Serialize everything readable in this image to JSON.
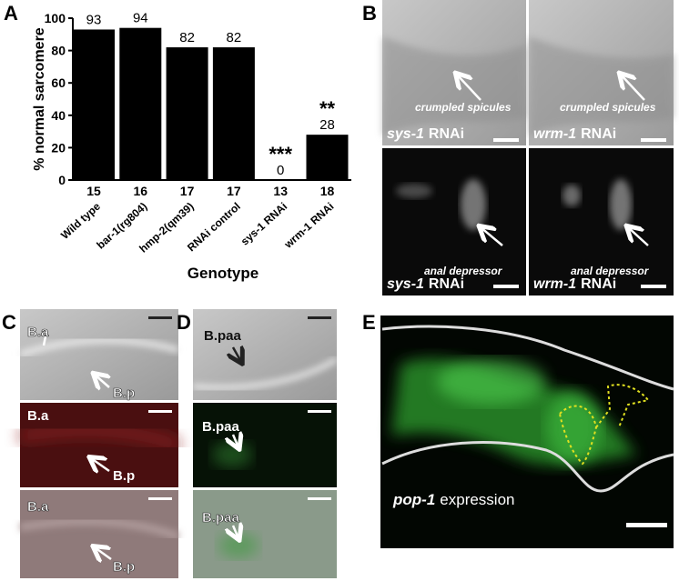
{
  "chart_data": {
    "type": "bar",
    "panel": "A",
    "y_label": "% normal sarcomere",
    "x_label": "Genotype",
    "categories": [
      "Wild type",
      "bar-1(rg804)",
      "hmp-2(qm39)",
      "RNAi control",
      "sys-1 RNAi",
      "wrm-1 RNAi"
    ],
    "values": [
      93,
      94,
      82,
      82,
      0,
      28
    ],
    "sample_sizes": [
      15,
      16,
      17,
      17,
      13,
      18
    ],
    "significance": [
      null,
      null,
      null,
      null,
      "***",
      "**"
    ],
    "color": "#000000",
    "ylim": [
      0,
      100
    ],
    "yticks": [
      0,
      20,
      40,
      60,
      80,
      100
    ]
  },
  "panel_b": {
    "letter": "B",
    "images": [
      {
        "arrow_label": "crumpled spicules",
        "gene": "sys-1",
        "suffix": "RNAi"
      },
      {
        "arrow_label": "crumpled spicules",
        "gene": "wrm-1",
        "suffix": "RNAi"
      },
      {
        "arrow_label": "anal depressor",
        "gene": "sys-1",
        "suffix": "RNAi"
      },
      {
        "arrow_label": "anal depressor",
        "gene": "wrm-1",
        "suffix": "RNAi"
      }
    ]
  },
  "panel_c": {
    "letter": "C",
    "images": [
      {
        "labels": [
          "B.a",
          "B.p"
        ]
      },
      {
        "labels": [
          "B.a",
          "B.p"
        ]
      },
      {
        "labels": [
          "B.a",
          "B.p"
        ]
      }
    ]
  },
  "panel_d": {
    "letter": "D",
    "images": [
      {
        "labels": [
          "B.paa"
        ]
      },
      {
        "labels": [
          "B.paa"
        ]
      },
      {
        "labels": [
          "B.paa"
        ]
      }
    ]
  },
  "panel_e": {
    "letter": "E",
    "gene": "pop-1",
    "suffix": "expression"
  }
}
